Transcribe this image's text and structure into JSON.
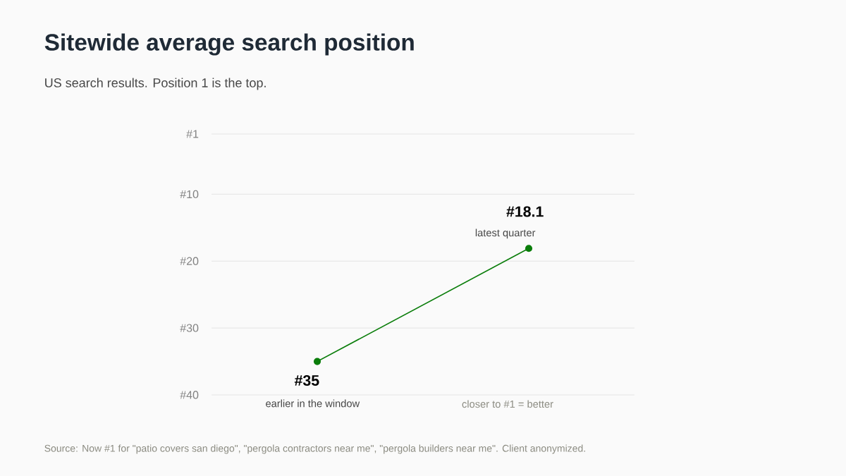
{
  "chart_data": {
    "type": "line",
    "title": "Sitewide average search position",
    "subtitle": "US search results. Position 1 is the top.",
    "categories": [
      null,
      null
    ],
    "series": [
      {
        "color": "#0a7d0a",
        "values": [
          35,
          18.1
        ],
        "value_labels": [
          "#35",
          "#18.1"
        ]
      }
    ],
    "ylim": [
      40,
      1
    ],
    "yticks": [
      {
        "value": 1,
        "label": "#1"
      },
      {
        "value": 10,
        "label": "#10"
      },
      {
        "value": 20,
        "label": "#20"
      },
      {
        "value": 30,
        "label": "#30"
      },
      {
        "value": 40,
        "label": "#40"
      }
    ],
    "grid": "y",
    "marker": "circle",
    "annotations": [
      "closer to #1 = better",
      "earlier in the window",
      "latest quarter",
      "Source: Now #1 for \"patio covers san diego\", \"pergola contractors near me\", \"pergola builders near me\". Client anonymized."
    ]
  }
}
